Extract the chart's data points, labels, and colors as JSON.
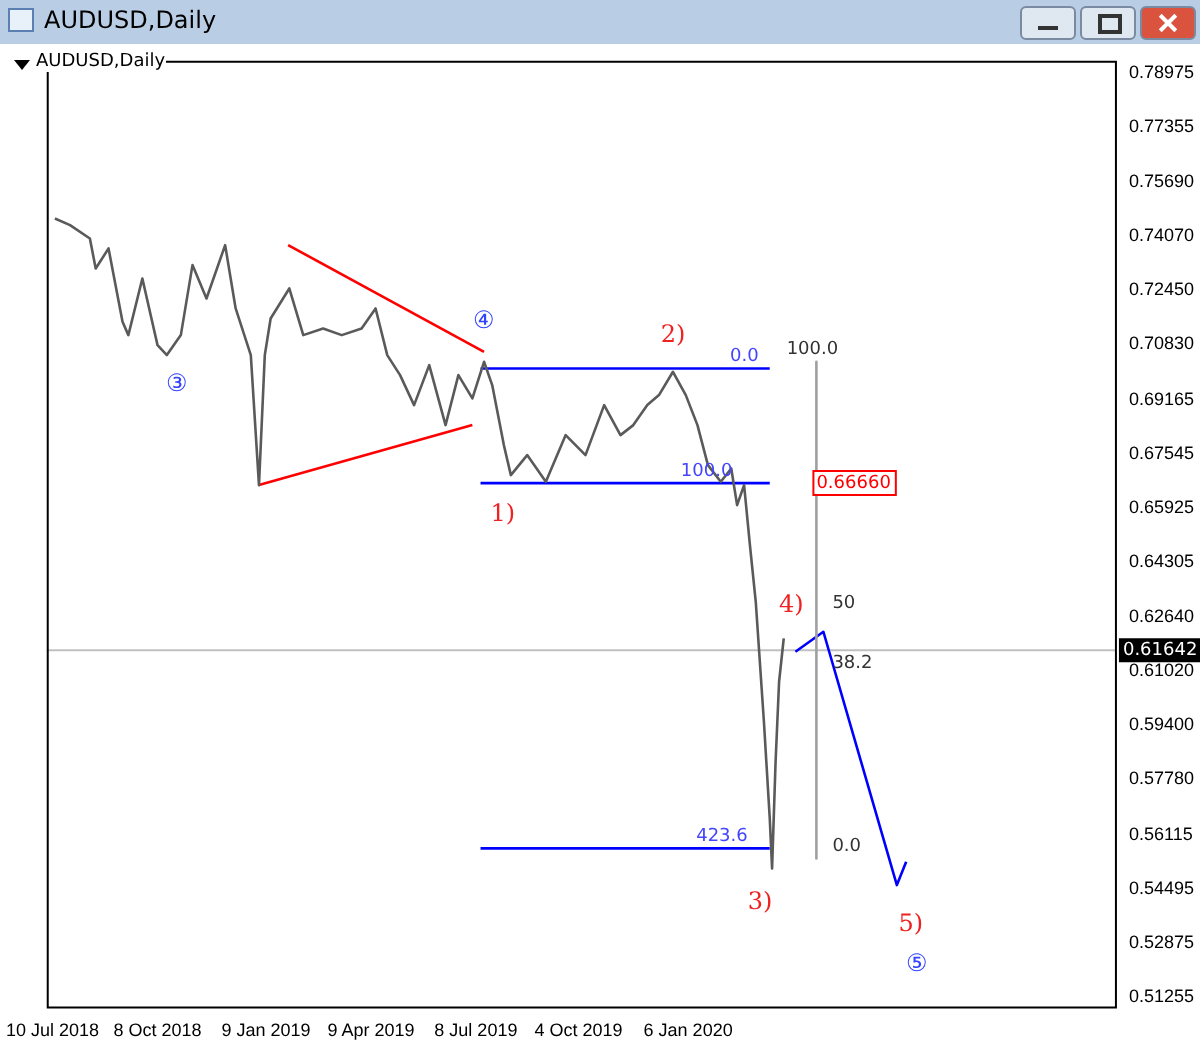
{
  "chart_data": {
    "type": "line",
    "title": "AUDUSD,Daily",
    "subtitle": "AUDUSD,Daily",
    "grid": false,
    "legend": false,
    "marker": "none",
    "xlim": [
      "2018-07-05",
      "2021-01-06"
    ],
    "xticks": [
      {
        "value": "2018-07-10",
        "label": "10 Jul 2018"
      },
      {
        "value": "2018-10-08",
        "label": "8 Oct 2018"
      },
      {
        "value": "2019-01-09",
        "label": "9 Jan 2019"
      },
      {
        "value": "2019-04-09",
        "label": "9 Apr 2019"
      },
      {
        "value": "2019-07-08",
        "label": "8 Jul 2019"
      },
      {
        "value": "2019-10-04",
        "label": "4 Oct 2019"
      },
      {
        "value": "2020-01-06",
        "label": "6 Jan 2020"
      }
    ],
    "ylim": [
      0.5096,
      0.7933
    ],
    "yticks": [
      {
        "value": 0.78975,
        "label": "0.78975"
      },
      {
        "value": 0.77355,
        "label": "0.77355"
      },
      {
        "value": 0.7569,
        "label": "0.75690"
      },
      {
        "value": 0.7407,
        "label": "0.74070"
      },
      {
        "value": 0.7245,
        "label": "0.72450"
      },
      {
        "value": 0.7083,
        "label": "0.70830"
      },
      {
        "value": 0.69165,
        "label": "0.69165"
      },
      {
        "value": 0.67545,
        "label": "0.67545"
      },
      {
        "value": 0.65925,
        "label": "0.65925"
      },
      {
        "value": 0.64305,
        "label": "0.64305"
      },
      {
        "value": 0.6264,
        "label": "0.62640"
      },
      {
        "value": 0.6102,
        "label": "0.61020"
      },
      {
        "value": 0.594,
        "label": "0.59400"
      },
      {
        "value": 0.5778,
        "label": "0.57780"
      },
      {
        "value": 0.56115,
        "label": "0.56115"
      },
      {
        "value": 0.54495,
        "label": "0.54495"
      },
      {
        "value": 0.52875,
        "label": "0.52875"
      },
      {
        "value": 0.51255,
        "label": "0.51255"
      }
    ],
    "series": [
      {
        "color": "#5a5a5a",
        "x": [
          "2018-07-12",
          "2018-07-25",
          "2018-08-11",
          "2018-08-16",
          "2018-08-27",
          "2018-09-08",
          "2018-09-13",
          "2018-09-25",
          "2018-10-08",
          "2018-10-16",
          "2018-10-28",
          "2018-11-07",
          "2018-11-19",
          "2018-12-05",
          "2018-12-14",
          "2018-12-27",
          "2019-01-03",
          "2019-01-08",
          "2019-01-13",
          "2019-01-29",
          "2019-02-10",
          "2019-02-27",
          "2019-03-15",
          "2019-04-01",
          "2019-04-13",
          "2019-04-23",
          "2019-05-04",
          "2019-05-16",
          "2019-05-29",
          "2019-06-12",
          "2019-06-23",
          "2019-07-05",
          "2019-07-15",
          "2019-07-22",
          "2019-08-01",
          "2019-08-07",
          "2019-08-21",
          "2019-09-06",
          "2019-09-23",
          "2019-10-10",
          "2019-10-26",
          "2019-11-09",
          "2019-11-20",
          "2019-12-02",
          "2019-12-12",
          "2019-12-24",
          "2020-01-04",
          "2020-01-14",
          "2020-01-23",
          "2020-02-03",
          "2020-02-12",
          "2020-02-17",
          "2020-02-23",
          "2020-02-28",
          "2020-03-04",
          "2020-03-11",
          "2020-03-16",
          "2020-03-18",
          "2020-03-21",
          "2020-03-24",
          "2020-03-28"
        ],
        "values": [
          0.746,
          0.744,
          0.74,
          0.731,
          0.737,
          0.715,
          0.711,
          0.728,
          0.708,
          0.705,
          0.711,
          0.732,
          0.722,
          0.738,
          0.719,
          0.705,
          0.666,
          0.705,
          0.716,
          0.725,
          0.711,
          0.713,
          0.711,
          0.713,
          0.719,
          0.705,
          0.699,
          0.69,
          0.702,
          0.684,
          0.699,
          0.692,
          0.703,
          0.696,
          0.678,
          0.669,
          0.675,
          0.667,
          0.681,
          0.675,
          0.69,
          0.681,
          0.684,
          0.69,
          0.693,
          0.7,
          0.693,
          0.684,
          0.672,
          0.667,
          0.671,
          0.66,
          0.666,
          0.648,
          0.631,
          0.595,
          0.566,
          0.551,
          0.583,
          0.607,
          0.62
        ]
      },
      {
        "color": "#ff0000",
        "x": [
          "2019-01-28",
          "2019-07-15"
        ],
        "values": [
          0.738,
          0.706
        ]
      },
      {
        "color": "#ff0000",
        "x": [
          "2019-01-03",
          "2019-07-05"
        ],
        "values": [
          0.666,
          0.684
        ]
      },
      {
        "color": "#0000ff",
        "x": [
          "2019-07-12",
          "2020-03-16"
        ],
        "values": [
          0.701,
          0.701
        ]
      },
      {
        "color": "#0000ff",
        "x": [
          "2019-07-12",
          "2020-03-16"
        ],
        "values": [
          0.6666,
          0.6666
        ]
      },
      {
        "color": "#0000ff",
        "x": [
          "2019-07-12",
          "2020-03-16"
        ],
        "values": [
          0.557,
          0.557
        ]
      },
      {
        "color": "#a0a0a0",
        "x": [
          "2020-04-25",
          "2020-04-25"
        ],
        "values": [
          0.703,
          0.554
        ]
      },
      {
        "color": "#0000ff",
        "x": [
          "2020-04-07",
          "2020-05-01",
          "2020-07-03",
          "2020-07-11"
        ],
        "values": [
          0.616,
          0.622,
          0.546,
          0.553
        ]
      }
    ],
    "ref_lines": [
      {
        "axis": "y",
        "value": 0.61642,
        "label": "0.61642",
        "color": "#c0c0c0"
      }
    ],
    "annotations": [
      {
        "text": "③",
        "x": "2018-10-16",
        "y": 0.705
      },
      {
        "text": "④",
        "x": "2019-07-15",
        "y": 0.703
      },
      {
        "text": "1)",
        "x": "2019-08-07",
        "y": 0.669
      },
      {
        "text": "2)",
        "x": "2019-12-24",
        "y": 0.7
      },
      {
        "text": "3)",
        "x": "2020-03-18",
        "y": 0.551
      },
      {
        "text": "4)",
        "x": "2020-05-01",
        "y": 0.622
      },
      {
        "text": "5)",
        "x": "2020-07-03",
        "y": 0.546
      },
      {
        "text": "⑤",
        "x": "2020-07-03",
        "y": 0.546
      },
      {
        "text": "0.0",
        "x": "2020-03-08",
        "y": 0.701
      },
      {
        "text": "100.0",
        "x": "2020-03-03",
        "y": 0.6666
      },
      {
        "text": "423.6",
        "x": "2020-02-28",
        "y": 0.557
      },
      {
        "text": "0.66660",
        "x": "2020-04-25",
        "y": 0.6666
      },
      {
        "text": "100.0",
        "x": "2020-04-25",
        "y": 0.703
      },
      {
        "text": "50",
        "x": "2020-04-25",
        "y": 0.627
      },
      {
        "text": "38.2",
        "x": "2020-04-25",
        "y": 0.609
      },
      {
        "text": "0.0",
        "x": "2020-04-25",
        "y": 0.554
      }
    ]
  }
}
